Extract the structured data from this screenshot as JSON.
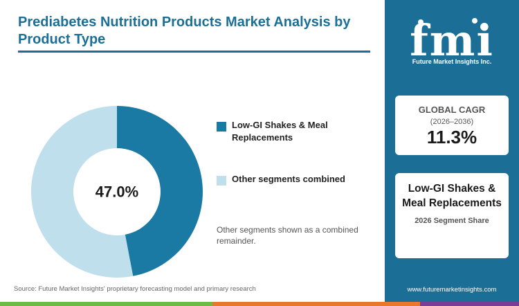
{
  "title": "Prediabetes Nutrition Products Market Analysis by Product Type",
  "source": "Source: Future Market Insights' proprietary forecasting model and primary research",
  "note": "Other segments shown as a combined remainder.",
  "center_label": "47.0%",
  "chart_data": {
    "type": "pie",
    "style": "donut",
    "categories": [
      "Low-GI Shakes & Meal Replacements",
      "Other segments combined"
    ],
    "values": [
      47.0,
      53.0
    ],
    "unit": "%",
    "colors": [
      "#1b7aa4",
      "#bedfeb"
    ],
    "legend_position": "right"
  },
  "sidebar": {
    "logo_text": "fmi",
    "logo_tagline": "Future Market Insights Inc.",
    "cagr_label": "GLOBAL CAGR",
    "cagr_period": "(2026–2036)",
    "cagr_value": "11.3%",
    "segment_name": "Low-GI Shakes & Meal Replacements",
    "segment_sub": "2026 Segment Share",
    "website": "www.futuremarketinsights.com"
  },
  "colors": {
    "brand": "#1b6f96",
    "bottom_bar": [
      "#6dbb45",
      "#e8782a",
      "#7b3e96"
    ]
  }
}
